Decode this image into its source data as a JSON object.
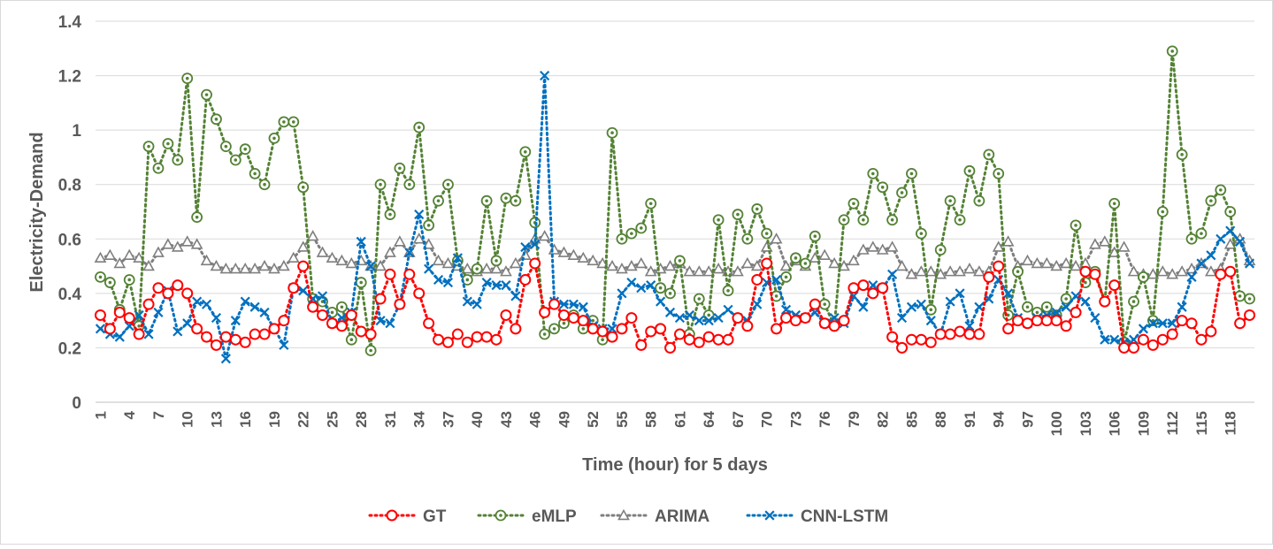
{
  "chart_data": {
    "type": "line",
    "title": "",
    "xlabel": "Time (hour) for 5 days",
    "ylabel": "Electricity-Demand",
    "ylim": [
      0,
      1.4
    ],
    "yticks": [
      "0",
      "0.2",
      "0.4",
      "0.6",
      "0.8",
      "1",
      "1.2",
      "1.4"
    ],
    "xtick_labels": [
      "1",
      "4",
      "7",
      "10",
      "13",
      "16",
      "19",
      "22",
      "25",
      "28",
      "31",
      "34",
      "37",
      "40",
      "43",
      "46",
      "49",
      "52",
      "55",
      "58",
      "61",
      "64",
      "67",
      "70",
      "73",
      "76",
      "79",
      "82",
      "85",
      "88",
      "91",
      "94",
      "97",
      "100",
      "103",
      "106",
      "109",
      "112",
      "115",
      "118"
    ],
    "grid": "horizontal",
    "legend_position": "bottom",
    "series": [
      {
        "name": "GT",
        "color": "#ff0000",
        "marker": "circle",
        "values": [
          0.32,
          0.27,
          0.33,
          0.31,
          0.25,
          0.36,
          0.42,
          0.4,
          0.43,
          0.4,
          0.27,
          0.24,
          0.21,
          0.24,
          0.23,
          0.22,
          0.25,
          0.25,
          0.27,
          0.3,
          0.42,
          0.5,
          0.35,
          0.32,
          0.29,
          0.28,
          0.32,
          0.26,
          0.25,
          0.38,
          0.47,
          0.36,
          0.47,
          0.4,
          0.29,
          0.23,
          0.22,
          0.25,
          0.22,
          0.24,
          0.24,
          0.23,
          0.32,
          0.27,
          0.45,
          0.51,
          0.33,
          0.36,
          0.32,
          0.31,
          0.3,
          0.27,
          0.26,
          0.24,
          0.27,
          0.31,
          0.21,
          0.26,
          0.27,
          0.2,
          0.25,
          0.23,
          0.22,
          0.24,
          0.23,
          0.23,
          0.31,
          0.28,
          0.45,
          0.51,
          0.27,
          0.31,
          0.3,
          0.31,
          0.36,
          0.29,
          0.28,
          0.3,
          0.42,
          0.43,
          0.4,
          0.42,
          0.24,
          0.2,
          0.23,
          0.23,
          0.22,
          0.25,
          0.25,
          0.26,
          0.25,
          0.25,
          0.46,
          0.5,
          0.27,
          0.3,
          0.29,
          0.3,
          0.3,
          0.3,
          0.28,
          0.33,
          0.48,
          0.47,
          0.37,
          0.43,
          0.2,
          0.2,
          0.23,
          0.21,
          0.23,
          0.25,
          0.3,
          0.29,
          0.23,
          0.26,
          0.47,
          0.48,
          0.29,
          0.32
        ]
      },
      {
        "name": "eMLP",
        "color": "#548235",
        "marker": "circle-dot",
        "values": [
          0.46,
          0.44,
          0.34,
          0.45,
          0.28,
          0.94,
          0.86,
          0.95,
          0.89,
          1.19,
          0.68,
          1.13,
          1.04,
          0.94,
          0.89,
          0.93,
          0.84,
          0.8,
          0.97,
          1.03,
          1.03,
          0.79,
          0.38,
          0.37,
          0.33,
          0.35,
          0.23,
          0.44,
          0.19,
          0.8,
          0.69,
          0.86,
          0.8,
          1.01,
          0.65,
          0.74,
          0.8,
          0.52,
          0.45,
          0.49,
          0.74,
          0.52,
          0.75,
          0.74,
          0.92,
          0.66,
          0.25,
          0.27,
          0.29,
          0.32,
          0.27,
          0.3,
          0.23,
          0.99,
          0.6,
          0.62,
          0.64,
          0.73,
          0.42,
          0.4,
          0.52,
          0.25,
          0.38,
          0.32,
          0.67,
          0.41,
          0.69,
          0.6,
          0.71,
          0.62,
          0.39,
          0.46,
          0.53,
          0.51,
          0.61,
          0.36,
          0.28,
          0.67,
          0.73,
          0.67,
          0.84,
          0.79,
          0.67,
          0.77,
          0.84,
          0.62,
          0.34,
          0.56,
          0.74,
          0.67,
          0.85,
          0.74,
          0.91,
          0.84,
          0.32,
          0.48,
          0.35,
          0.33,
          0.35,
          0.32,
          0.38,
          0.65,
          0.44,
          0.48,
          0.37,
          0.73,
          0.22,
          0.37,
          0.46,
          0.3,
          0.7,
          1.29,
          0.91,
          0.6,
          0.62,
          0.74,
          0.78,
          0.7,
          0.39,
          0.38
        ]
      },
      {
        "name": "ARIMA",
        "color": "#7f7f7f",
        "marker": "triangle",
        "values": [
          0.53,
          0.54,
          0.51,
          0.54,
          0.53,
          0.5,
          0.55,
          0.58,
          0.57,
          0.59,
          0.58,
          0.52,
          0.5,
          0.49,
          0.49,
          0.49,
          0.49,
          0.5,
          0.49,
          0.5,
          0.53,
          0.57,
          0.61,
          0.55,
          0.53,
          0.52,
          0.51,
          0.52,
          0.5,
          0.5,
          0.55,
          0.59,
          0.55,
          0.6,
          0.58,
          0.52,
          0.51,
          0.5,
          0.49,
          0.48,
          0.49,
          0.49,
          0.48,
          0.51,
          0.54,
          0.6,
          0.61,
          0.56,
          0.55,
          0.54,
          0.53,
          0.52,
          0.51,
          0.5,
          0.49,
          0.5,
          0.51,
          0.48,
          0.49,
          0.5,
          0.51,
          0.48,
          0.48,
          0.48,
          0.49,
          0.48,
          0.48,
          0.51,
          0.5,
          0.57,
          0.6,
          0.5,
          0.52,
          0.5,
          0.53,
          0.54,
          0.51,
          0.5,
          0.52,
          0.56,
          0.57,
          0.56,
          0.57,
          0.5,
          0.47,
          0.48,
          0.48,
          0.47,
          0.48,
          0.48,
          0.49,
          0.48,
          0.48,
          0.57,
          0.59,
          0.5,
          0.52,
          0.51,
          0.51,
          0.5,
          0.51,
          0.5,
          0.51,
          0.58,
          0.59,
          0.55,
          0.57,
          0.48,
          0.47,
          0.47,
          0.48,
          0.47,
          0.48,
          0.49,
          0.51,
          0.48,
          0.49,
          0.58,
          0.6,
          0.52
        ]
      },
      {
        "name": "CNN-LSTM",
        "color": "#0070c0",
        "marker": "x",
        "values": [
          0.27,
          0.25,
          0.24,
          0.28,
          0.32,
          0.25,
          0.33,
          0.41,
          0.26,
          0.29,
          0.37,
          0.36,
          0.31,
          0.16,
          0.3,
          0.37,
          0.35,
          0.33,
          0.27,
          0.21,
          0.42,
          0.41,
          0.38,
          0.39,
          0.29,
          0.31,
          0.33,
          0.59,
          0.5,
          0.3,
          0.29,
          0.36,
          0.55,
          0.69,
          0.49,
          0.45,
          0.44,
          0.53,
          0.37,
          0.36,
          0.44,
          0.43,
          0.43,
          0.39,
          0.57,
          0.58,
          1.2,
          0.37,
          0.36,
          0.36,
          0.35,
          0.28,
          0.27,
          0.27,
          0.4,
          0.44,
          0.42,
          0.43,
          0.37,
          0.33,
          0.31,
          0.32,
          0.3,
          0.3,
          0.31,
          0.34,
          0.31,
          0.3,
          0.36,
          0.44,
          0.45,
          0.34,
          0.32,
          0.31,
          0.33,
          0.29,
          0.31,
          0.29,
          0.39,
          0.35,
          0.43,
          0.42,
          0.47,
          0.31,
          0.35,
          0.36,
          0.3,
          0.25,
          0.37,
          0.4,
          0.28,
          0.35,
          0.38,
          0.45,
          0.4,
          0.31,
          0.29,
          0.31,
          0.32,
          0.33,
          0.35,
          0.39,
          0.37,
          0.31,
          0.23,
          0.23,
          0.22,
          0.23,
          0.27,
          0.29,
          0.29,
          0.29,
          0.35,
          0.46,
          0.51,
          0.54,
          0.6,
          0.63,
          0.59,
          0.51
        ]
      }
    ]
  }
}
